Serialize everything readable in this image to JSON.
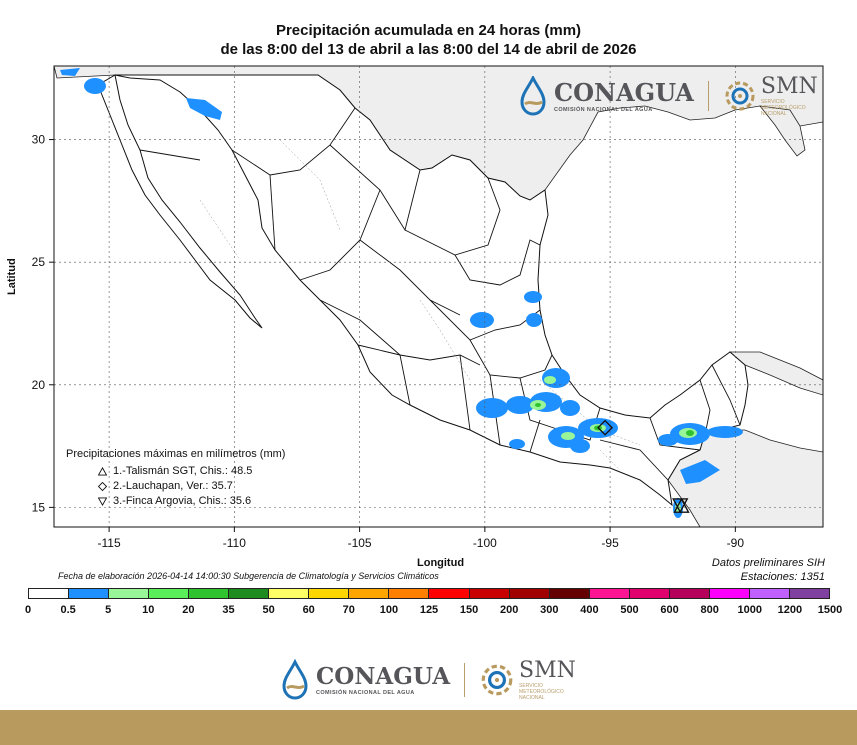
{
  "title": {
    "line1": "Precipitación acumulada en 24 horas (mm)",
    "line2": "de las 8:00 del 13 de abril a las 8:00 del 14 de abril de 2026"
  },
  "axes": {
    "ylabel": "Latitud",
    "xlabel": "Longitud",
    "x_ticks": [
      -115,
      -110,
      -105,
      -100,
      -95,
      -90
    ],
    "x_tick_labels": [
      "-115",
      "-110",
      "-105",
      "-100",
      "-95",
      "-90"
    ],
    "y_ticks": [
      15,
      20,
      25,
      30
    ],
    "y_tick_labels": [
      "15",
      "20",
      "25",
      "30"
    ],
    "xlim": [
      -117.2,
      -86.5
    ],
    "ylim": [
      14.2,
      33.0
    ],
    "grid": true
  },
  "maxima": {
    "title": "Precipitaciones máximas en milímetros (mm)",
    "items": [
      {
        "marker": "triangle-up",
        "text": "1.-Talismán SGT, Chis.: 48.5",
        "lon": -92.15,
        "lat": 15.05
      },
      {
        "marker": "diamond",
        "text": "2.-Lauchapan, Ver.: 35.7",
        "lon": -95.2,
        "lat": 18.25
      },
      {
        "marker": "triangle-down",
        "text": "3.-Finca Argovia, Chis.: 35.6",
        "lon": -92.2,
        "lat": 15.1
      }
    ]
  },
  "datos": {
    "line1": "Datos preliminares SIH",
    "line2": "Estaciones:  1351"
  },
  "fecha": "Fecha de elaboración 2026-04-14 14:00:30 Subgerencia de Climatología y Servicios Climáticos",
  "scale": {
    "labels": [
      "0",
      "0.5",
      "5",
      "10",
      "20",
      "35",
      "50",
      "60",
      "70",
      "100",
      "125",
      "150",
      "200",
      "300",
      "400",
      "500",
      "600",
      "800",
      "1000",
      "1200",
      "1500"
    ],
    "colors": [
      "#ffffff",
      "#1e90ff",
      "#98f598",
      "#5aee5a",
      "#2fc42f",
      "#1e8c1e",
      "#ffff66",
      "#ffd700",
      "#ffa500",
      "#ff7f00",
      "#ff0000",
      "#c80000",
      "#a00000",
      "#640000",
      "#ff1493",
      "#e0006e",
      "#b4005a",
      "#ff00ff",
      "#c060ff",
      "#8040a0",
      "#5050a0"
    ]
  },
  "colors": {
    "rain_light": "#1e90ff",
    "rain_mid": "#98f598",
    "rain_heavy": "#2fc42f",
    "land": "#ffffff",
    "neighbor": "#eeeeee",
    "water": "#ffffff",
    "brand_gold": "#b89a5f"
  },
  "branding": {
    "conagua": "CONAGUA",
    "conagua_sub": "COMISIÓN NACIONAL DEL AGUA",
    "smn": "SMN",
    "smn_sub": [
      "SERVICIO",
      "METEOROLÓGICO",
      "NACIONAL"
    ]
  },
  "icons": {
    "conagua_logo": "conagua-drop-icon",
    "smn_logo": "smn-swirl-icon"
  }
}
